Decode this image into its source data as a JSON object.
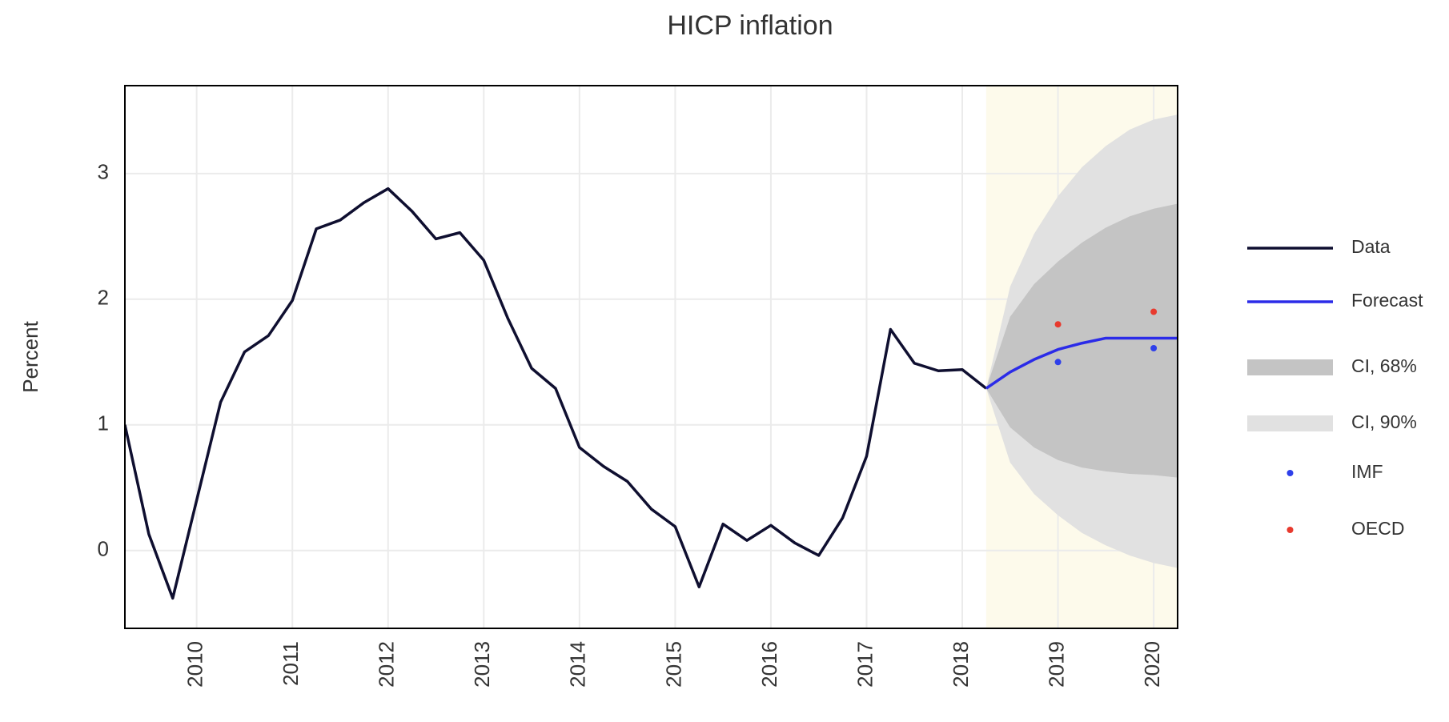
{
  "chart_data": {
    "type": "line",
    "title": "HICP inflation",
    "y_label": "Percent",
    "xlim": [
      2009.25,
      2020.25
    ],
    "ylim": [
      -0.62,
      3.7
    ],
    "xticks": [
      2010,
      2011,
      2012,
      2013,
      2014,
      2015,
      2016,
      2017,
      2018,
      2019,
      2020
    ],
    "yticks": [
      0,
      1,
      2,
      3
    ],
    "grid": true,
    "legend": "right",
    "forecast_shade_color": "#fdfaeb",
    "series": [
      {
        "name": "Data",
        "color": "#0f0f30",
        "x": [
          2009.25,
          2009.5,
          2009.75,
          2010,
          2010.25,
          2010.5,
          2010.75,
          2011,
          2011.25,
          2011.5,
          2011.75,
          2012,
          2012.25,
          2012.5,
          2012.75,
          2013,
          2013.25,
          2013.5,
          2013.75,
          2014,
          2014.25,
          2014.5,
          2014.75,
          2015,
          2015.25,
          2015.5,
          2015.75,
          2016,
          2016.25,
          2016.5,
          2016.75,
          2017,
          2017.25,
          2017.5,
          2017.75,
          2018,
          2018.25
        ],
        "values": [
          1.0,
          0.13,
          -0.38,
          0.4,
          1.18,
          1.58,
          1.71,
          1.99,
          2.56,
          2.63,
          2.77,
          2.88,
          2.7,
          2.48,
          2.53,
          2.31,
          1.85,
          1.45,
          1.29,
          0.82,
          0.67,
          0.55,
          0.33,
          0.19,
          -0.29,
          0.21,
          0.08,
          0.2,
          0.06,
          -0.04,
          0.26,
          0.75,
          1.76,
          1.49,
          1.43,
          1.44,
          1.29
        ]
      },
      {
        "name": "Forecast",
        "color": "#2b2be8",
        "x": [
          2018.25,
          2018.5,
          2018.75,
          2019,
          2019.25,
          2019.5,
          2019.75,
          2020,
          2020.25
        ],
        "values": [
          1.29,
          1.42,
          1.52,
          1.6,
          1.65,
          1.69,
          1.69,
          1.69,
          1.69
        ]
      }
    ],
    "bands": [
      {
        "name": "CI, 68%",
        "color": "#c4c4c4",
        "x": [
          2018.25,
          2018.5,
          2018.75,
          2019,
          2019.25,
          2019.5,
          2019.75,
          2020,
          2020.25
        ],
        "lower": [
          1.29,
          0.98,
          0.82,
          0.72,
          0.66,
          0.63,
          0.61,
          0.6,
          0.58
        ],
        "upper": [
          1.29,
          1.86,
          2.12,
          2.3,
          2.45,
          2.57,
          2.66,
          2.72,
          2.76
        ]
      },
      {
        "name": "CI, 90%",
        "color": "#e1e1e1",
        "x": [
          2018.25,
          2018.5,
          2018.75,
          2019,
          2019.25,
          2019.5,
          2019.75,
          2020,
          2020.25
        ],
        "lower": [
          1.29,
          0.7,
          0.45,
          0.28,
          0.14,
          0.04,
          -0.04,
          -0.1,
          -0.14
        ],
        "upper": [
          1.29,
          2.1,
          2.52,
          2.82,
          3.05,
          3.22,
          3.35,
          3.43,
          3.47
        ]
      }
    ],
    "points": [
      {
        "name": "IMF",
        "color": "#2f40ea",
        "x": [
          2019,
          2020
        ],
        "values": [
          1.5,
          1.61
        ]
      },
      {
        "name": "OECD",
        "color": "#e83a2e",
        "x": [
          2019,
          2020
        ],
        "values": [
          1.8,
          1.9
        ]
      }
    ]
  }
}
